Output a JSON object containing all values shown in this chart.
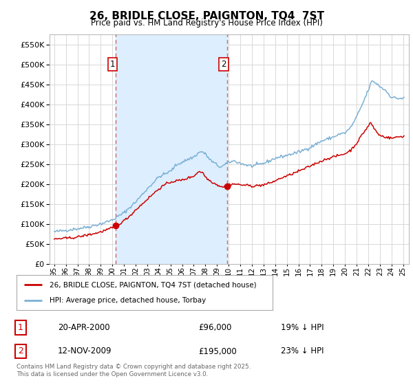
{
  "title": "26, BRIDLE CLOSE, PAIGNTON, TQ4  7ST",
  "subtitle": "Price paid vs. HM Land Registry's House Price Index (HPI)",
  "legend_label_red": "26, BRIDLE CLOSE, PAIGNTON, TQ4 7ST (detached house)",
  "legend_label_blue": "HPI: Average price, detached house, Torbay",
  "transaction1_date": "20-APR-2000",
  "transaction1_price": 96000,
  "transaction1_note": "19% ↓ HPI",
  "transaction2_date": "12-NOV-2009",
  "transaction2_price": 195000,
  "transaction2_note": "23% ↓ HPI",
  "vline1_year": 2000.3,
  "vline2_year": 2009.87,
  "footnote": "Contains HM Land Registry data © Crown copyright and database right 2025.\nThis data is licensed under the Open Government Licence v3.0.",
  "ylim": [
    0,
    575000
  ],
  "yticks": [
    0,
    50000,
    100000,
    150000,
    200000,
    250000,
    300000,
    350000,
    400000,
    450000,
    500000,
    550000
  ],
  "background_color": "#ffffff",
  "grid_color": "#d8d8d8",
  "red_color": "#cc0000",
  "blue_color": "#7ab0d4",
  "shade_color": "#ddeeff",
  "vline_color": "#cc6666"
}
